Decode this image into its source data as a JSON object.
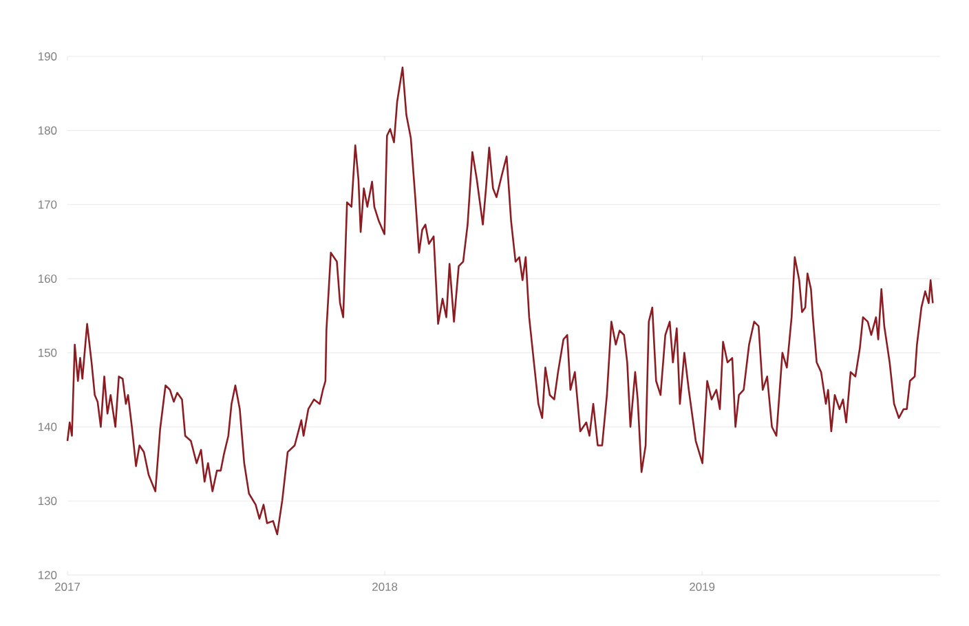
{
  "chart_data": {
    "type": "line",
    "x": [
      2017.0,
      2017.007,
      2017.014,
      2017.023,
      2017.033,
      2017.04,
      2017.047,
      2017.062,
      2017.076,
      2017.086,
      2017.095,
      2017.105,
      2017.116,
      2017.126,
      2017.136,
      2017.151,
      2017.162,
      2017.174,
      2017.184,
      2017.191,
      2017.203,
      2017.216,
      2017.227,
      2017.241,
      2017.256,
      2017.277,
      2017.292,
      2017.309,
      2017.323,
      2017.335,
      2017.346,
      2017.361,
      2017.371,
      2017.389,
      2017.407,
      2017.421,
      2017.432,
      2017.443,
      2017.457,
      2017.471,
      2017.483,
      2017.493,
      2017.507,
      2017.517,
      2017.529,
      2017.543,
      2017.557,
      2017.572,
      2017.593,
      2017.605,
      2017.618,
      2017.629,
      2017.648,
      2017.661,
      2017.677,
      2017.694,
      2017.716,
      2017.737,
      2017.744,
      2017.759,
      2017.777,
      2017.795,
      2017.805,
      2017.813,
      2017.816,
      2017.83,
      2017.849,
      2017.859,
      2017.869,
      2017.881,
      2017.895,
      2017.907,
      2017.917,
      2017.924,
      2017.934,
      2017.945,
      2017.96,
      2017.967,
      2017.981,
      2017.999,
      2018.007,
      2018.017,
      2018.029,
      2018.039,
      2018.056,
      2018.068,
      2018.082,
      2018.096,
      2018.108,
      2018.118,
      2018.128,
      2018.139,
      2018.154,
      2018.168,
      2018.182,
      2018.194,
      2018.204,
      2018.218,
      2018.233,
      2018.247,
      2018.261,
      2018.276,
      2018.29,
      2018.309,
      2018.319,
      2018.329,
      2018.341,
      2018.352,
      2018.369,
      2018.384,
      2018.398,
      2018.412,
      2018.424,
      2018.434,
      2018.444,
      2018.455,
      2018.47,
      2018.484,
      2018.496,
      2018.506,
      2018.52,
      2018.534,
      2018.546,
      2018.563,
      2018.575,
      2018.585,
      2018.599,
      2018.616,
      2018.635,
      2018.645,
      2018.657,
      2018.671,
      2018.685,
      2018.7,
      2018.714,
      2018.728,
      2018.74,
      2018.754,
      2018.764,
      2018.774,
      2018.789,
      2018.797,
      2018.809,
      2018.822,
      2018.832,
      2018.843,
      2018.855,
      2018.869,
      2018.884,
      2018.898,
      2018.908,
      2018.92,
      2018.93,
      2018.944,
      2018.958,
      2018.98,
      2019.001,
      2019.016,
      2019.03,
      2019.045,
      2019.056,
      2019.066,
      2019.08,
      2019.095,
      2019.105,
      2019.116,
      2019.131,
      2019.148,
      2019.164,
      2019.178,
      2019.191,
      2019.205,
      2019.22,
      2019.234,
      2019.253,
      2019.267,
      2019.282,
      2019.292,
      2019.306,
      2019.315,
      2019.325,
      2019.332,
      2019.343,
      2019.349,
      2019.361,
      2019.375,
      2019.39,
      2019.397,
      2019.407,
      2019.418,
      2019.433,
      2019.444,
      2019.454,
      2019.468,
      2019.483,
      2019.497,
      2019.507,
      2019.522,
      2019.533,
      2019.548,
      2019.555,
      2019.565,
      2019.574,
      2019.591,
      2019.605,
      2019.62,
      2019.635,
      2019.645,
      2019.655,
      2019.67,
      2019.677,
      2019.691,
      2019.703,
      2019.714,
      2019.72,
      2019.727
    ],
    "series": [
      {
        "color": "#8c1c22",
        "values": [
          138.1,
          140.6,
          138.8,
          151.1,
          146.2,
          149.3,
          146.5,
          153.9,
          148.7,
          144.3,
          143.4,
          140.0,
          146.8,
          141.8,
          144.3,
          140.0,
          146.8,
          146.5,
          143.1,
          144.3,
          140.0,
          134.7,
          137.5,
          136.6,
          133.5,
          131.3,
          139.7,
          145.6,
          145.0,
          143.4,
          144.6,
          143.7,
          138.8,
          138.1,
          135.1,
          136.9,
          132.6,
          135.1,
          131.3,
          134.1,
          134.1,
          136.3,
          138.8,
          143.1,
          145.6,
          142.4,
          135.1,
          131.0,
          129.5,
          127.6,
          129.5,
          127.0,
          127.3,
          125.5,
          130.1,
          136.6,
          137.5,
          140.9,
          138.8,
          142.4,
          143.7,
          143.1,
          145.0,
          146.2,
          153.0,
          163.5,
          162.3,
          156.7,
          154.8,
          170.3,
          169.7,
          178.0,
          173.4,
          166.3,
          172.2,
          169.7,
          173.1,
          169.7,
          167.8,
          166.0,
          179.3,
          180.2,
          178.4,
          183.9,
          188.5,
          182.1,
          179.0,
          171.0,
          163.5,
          166.6,
          167.3,
          164.7,
          165.7,
          153.9,
          157.3,
          154.8,
          162.0,
          154.2,
          161.7,
          162.3,
          167.3,
          177.1,
          173.4,
          167.3,
          172.2,
          177.7,
          172.2,
          171.0,
          174.0,
          176.5,
          167.8,
          162.3,
          162.9,
          159.8,
          162.9,
          154.8,
          148.7,
          143.1,
          141.2,
          148.0,
          144.3,
          143.7,
          147.4,
          151.8,
          152.4,
          145.0,
          147.4,
          139.4,
          140.6,
          138.8,
          143.1,
          137.5,
          137.5,
          144.3,
          154.2,
          151.1,
          153.0,
          152.4,
          148.7,
          140.0,
          147.4,
          143.7,
          133.9,
          137.5,
          154.2,
          156.1,
          146.2,
          144.3,
          152.4,
          154.2,
          148.7,
          153.3,
          143.1,
          150.0,
          145.0,
          138.1,
          135.1,
          146.2,
          143.7,
          145.0,
          142.4,
          151.5,
          148.7,
          149.3,
          140.0,
          144.3,
          145.0,
          151.1,
          154.2,
          153.6,
          145.0,
          146.8,
          140.0,
          138.8,
          150.0,
          148.0,
          154.8,
          162.9,
          159.8,
          155.5,
          156.1,
          160.7,
          158.6,
          154.8,
          148.7,
          147.4,
          143.1,
          145.0,
          139.4,
          144.3,
          142.4,
          143.7,
          140.6,
          147.4,
          146.8,
          150.6,
          154.8,
          154.2,
          152.4,
          154.8,
          151.8,
          158.6,
          153.6,
          148.7,
          143.1,
          141.2,
          142.4,
          142.4,
          146.2,
          146.8,
          151.1,
          156.1,
          158.3,
          156.7,
          159.8,
          156.7
        ]
      }
    ],
    "xlim": [
      2017,
      2019.75
    ],
    "xticks": [
      2017,
      2018,
      2019
    ],
    "ylim": [
      120,
      190
    ],
    "yticks": [
      120,
      130,
      140,
      150,
      160,
      170,
      180,
      190
    ],
    "grid": "y",
    "marker": "none",
    "line_style": "solid"
  }
}
